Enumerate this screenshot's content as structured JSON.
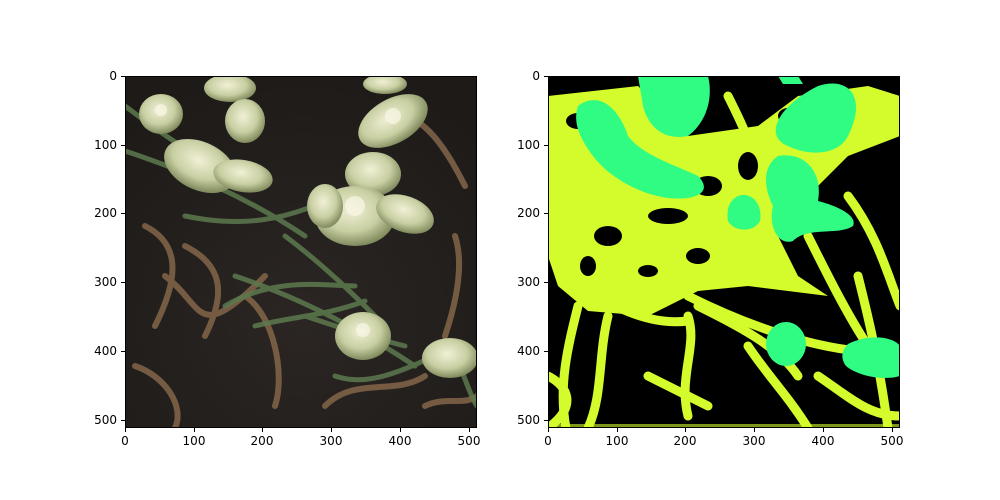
{
  "figure": {
    "left_panel": {
      "kind": "photo",
      "description_hidden": true,
      "x_ticks": [
        "0",
        "100",
        "200",
        "300",
        "400",
        "500"
      ],
      "y_ticks": [
        "0",
        "100",
        "200",
        "300",
        "400",
        "500"
      ]
    },
    "right_panel": {
      "kind": "segmentation-mask",
      "x_ticks": [
        "0",
        "100",
        "200",
        "300",
        "400",
        "500"
      ],
      "y_ticks": [
        "0",
        "100",
        "200",
        "300",
        "400",
        "500"
      ],
      "colors": {
        "background": "#000000",
        "class_1": "#d4fc2c",
        "class_2": "#30fc84"
      }
    }
  }
}
